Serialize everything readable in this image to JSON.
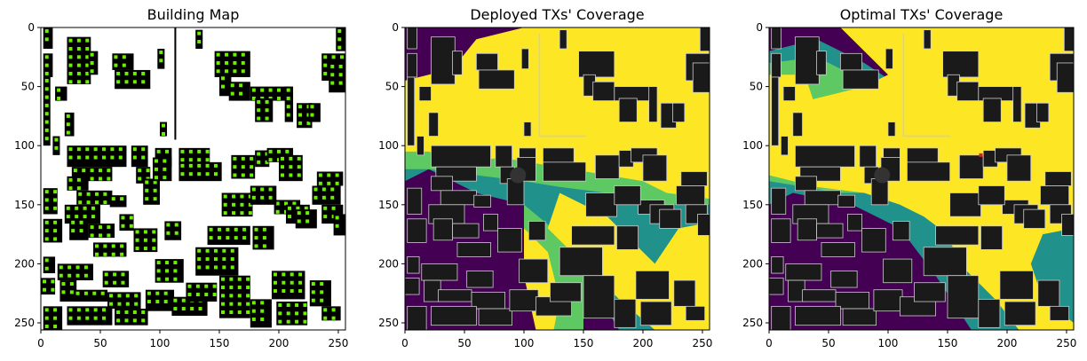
{
  "chart_data": [
    {
      "type": "heatmap",
      "title": "Building Map",
      "xlim": [
        0,
        256
      ],
      "ylim": [
        256,
        0
      ],
      "xticks": [
        0,
        50,
        100,
        150,
        200,
        250
      ],
      "yticks": [
        0,
        50,
        100,
        150,
        200,
        250
      ],
      "grid": false,
      "colors": {
        "background": "#ffffff",
        "building": "#000000",
        "tx_marker": "#6cf000"
      },
      "buildings": [
        [
          2,
          0,
          10,
          18
        ],
        [
          2,
          22,
          10,
          42
        ],
        [
          2,
          42,
          8,
          100
        ],
        [
          22,
          8,
          42,
          48
        ],
        [
          40,
          20,
          48,
          40
        ],
        [
          60,
          22,
          78,
          36
        ],
        [
          62,
          36,
          92,
          52
        ],
        [
          98,
          18,
          104,
          35
        ],
        [
          130,
          2,
          136,
          18
        ],
        [
          146,
          20,
          176,
          42
        ],
        [
          150,
          40,
          160,
          58
        ],
        [
          158,
          46,
          176,
          62
        ],
        [
          176,
          50,
          210,
          62
        ],
        [
          205,
          50,
          212,
          80
        ],
        [
          180,
          60,
          195,
          80
        ],
        [
          215,
          64,
          228,
          85
        ],
        [
          225,
          64,
          235,
          80
        ],
        [
          248,
          0,
          256,
          20
        ],
        [
          236,
          22,
          256,
          45
        ],
        [
          242,
          30,
          256,
          55
        ],
        [
          10,
          92,
          16,
          108
        ],
        [
          12,
          50,
          22,
          62
        ],
        [
          20,
          72,
          28,
          92
        ],
        [
          100,
          80,
          106,
          92
        ],
        [
          22,
          100,
          72,
          118
        ],
        [
          26,
          118,
          60,
          130
        ],
        [
          22,
          126,
          40,
          138
        ],
        [
          30,
          138,
          60,
          150
        ],
        [
          58,
          142,
          72,
          152
        ],
        [
          76,
          100,
          90,
          118
        ],
        [
          80,
          118,
          92,
          132
        ],
        [
          96,
          102,
          110,
          118
        ],
        [
          86,
          128,
          100,
          150
        ],
        [
          94,
          110,
          110,
          130
        ],
        [
          116,
          102,
          142,
          116
        ],
        [
          116,
          114,
          152,
          130
        ],
        [
          160,
          108,
          180,
          128
        ],
        [
          180,
          104,
          192,
          118
        ],
        [
          190,
          102,
          212,
          114
        ],
        [
          200,
          108,
          220,
          130
        ],
        [
          232,
          122,
          254,
          134
        ],
        [
          228,
          134,
          252,
          150
        ],
        [
          196,
          146,
          218,
          158
        ],
        [
          206,
          150,
          226,
          166
        ],
        [
          214,
          154,
          232,
          170
        ],
        [
          236,
          150,
          254,
          166
        ],
        [
          246,
          158,
          256,
          176
        ],
        [
          2,
          136,
          14,
          158
        ],
        [
          2,
          162,
          18,
          182
        ],
        [
          20,
          150,
          50,
          166
        ],
        [
          24,
          162,
          40,
          180
        ],
        [
          40,
          166,
          62,
          178
        ],
        [
          66,
          158,
          78,
          172
        ],
        [
          44,
          182,
          72,
          194
        ],
        [
          78,
          170,
          98,
          190
        ],
        [
          104,
          164,
          118,
          180
        ],
        [
          2,
          194,
          12,
          208
        ],
        [
          0,
          212,
          12,
          226
        ],
        [
          14,
          200,
          44,
          214
        ],
        [
          16,
          214,
          30,
          232
        ],
        [
          28,
          222,
          56,
          232
        ],
        [
          52,
          206,
          74,
          220
        ],
        [
          56,
          224,
          84,
          238
        ],
        [
          2,
          236,
          18,
          256
        ],
        [
          22,
          236,
          60,
          252
        ],
        [
          62,
          238,
          90,
          252
        ],
        [
          96,
          196,
          120,
          216
        ],
        [
          88,
          222,
          112,
          240
        ],
        [
          110,
          228,
          140,
          244
        ],
        [
          122,
          216,
          148,
          232
        ],
        [
          130,
          186,
          166,
          210
        ],
        [
          152,
          140,
          178,
          160
        ],
        [
          176,
          134,
          198,
          150
        ],
        [
          140,
          168,
          176,
          184
        ],
        [
          178,
          168,
          196,
          188
        ],
        [
          150,
          210,
          176,
          246
        ],
        [
          176,
          230,
          194,
          254
        ],
        [
          194,
          206,
          222,
          230
        ],
        [
          198,
          232,
          224,
          252
        ],
        [
          226,
          214,
          244,
          236
        ],
        [
          236,
          236,
          252,
          248
        ]
      ]
    },
    {
      "type": "heatmap",
      "title": "Deployed TXs' Coverage",
      "xlim": [
        0,
        256
      ],
      "ylim": [
        256,
        0
      ],
      "xticks": [
        0,
        50,
        100,
        150,
        200,
        250
      ],
      "yticks": [
        0,
        50,
        100,
        150,
        200,
        250
      ],
      "grid": false,
      "colormap": [
        "#440154",
        "#21918c",
        "#5ec962",
        "#fde725"
      ],
      "building_color": "#1a1a1a",
      "building_outline": "#cccccc"
    },
    {
      "type": "heatmap",
      "title": "Optimal TXs' Coverage",
      "xlim": [
        0,
        256
      ],
      "ylim": [
        256,
        0
      ],
      "xticks": [
        0,
        50,
        100,
        150,
        200,
        250
      ],
      "yticks": [
        0,
        50,
        100,
        150,
        200,
        250
      ],
      "grid": false,
      "colormap": [
        "#440154",
        "#21918c",
        "#5ec962",
        "#fde725"
      ],
      "building_color": "#1a1a1a",
      "building_outline": "#cccccc",
      "tx_marker_color": "#e31a1c"
    }
  ]
}
